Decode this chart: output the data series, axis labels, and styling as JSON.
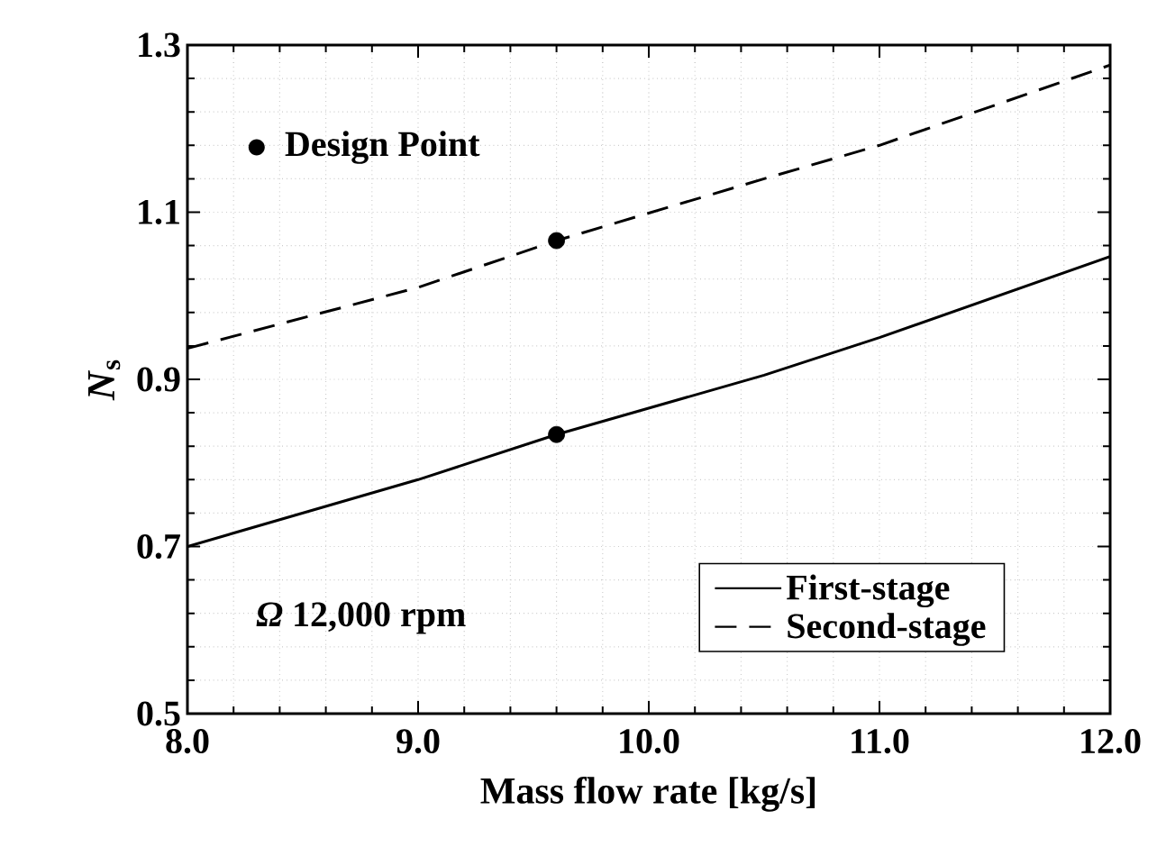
{
  "chart_data": {
    "type": "line",
    "xlabel": "Mass flow rate [kg/s]",
    "ylabel": "*N*$_{s}$",
    "xlim": [
      8,
      12
    ],
    "xticks": [
      {
        "value": 8,
        "label": "8.0"
      },
      {
        "value": 9,
        "label": "9.0"
      },
      {
        "value": 10,
        "label": "10.0"
      },
      {
        "value": 11,
        "label": "11.0"
      },
      {
        "value": 12,
        "label": "12.0"
      }
    ],
    "ylim": [
      0.5,
      1.3
    ],
    "yticks": [
      0.5,
      0.7,
      0.9,
      1.1,
      1.3
    ],
    "grid": true,
    "legend": "bottom right",
    "marker": "none",
    "annotations": [
      "*Ω* 12,000 rpm"
    ],
    "series": [
      {
        "name": "First-stage",
        "color": "#000000",
        "line_style": "solid",
        "x": [
          8,
          9,
          9.6,
          10.5,
          11,
          12
        ],
        "values": [
          0.7,
          0.78,
          0.834,
          0.905,
          0.95,
          1.047
        ]
      },
      {
        "name": "Second-stage",
        "color": "#000000",
        "line_style": "dashed",
        "x": [
          8,
          9,
          9.6,
          10.5,
          11,
          12
        ],
        "values": [
          0.937,
          1.01,
          1.066,
          1.14,
          1.18,
          1.276
        ]
      },
      {
        "name": "Design Point",
        "type": "scatter",
        "marker": "circle",
        "color": "#000000",
        "x": [
          9.6,
          9.6
        ],
        "values": [
          0.834,
          1.066
        ]
      }
    ]
  }
}
